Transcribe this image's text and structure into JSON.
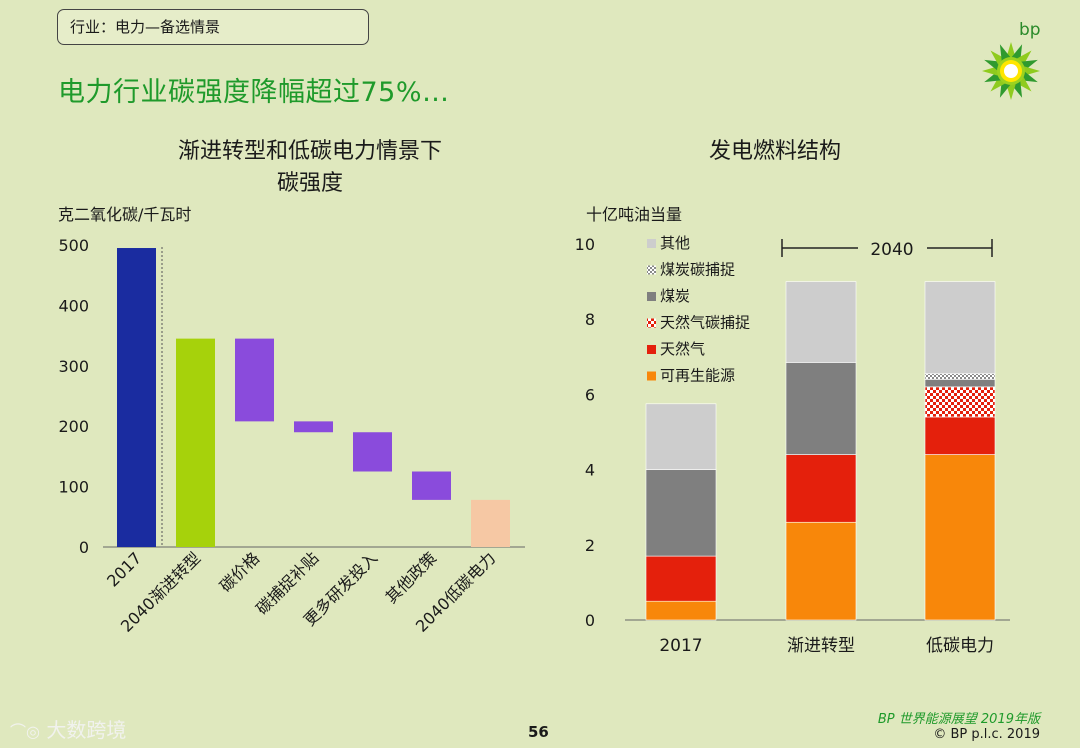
{
  "header": {
    "sector_tag": "行业：电力—备选情景",
    "headline": "电力行业碳强度降幅超过75%…",
    "brand": "bp"
  },
  "colors": {
    "headline": "#1f9a2b",
    "navy": "#1a2ca0",
    "lime": "#a6d20b",
    "purple": "#8a4bdc",
    "peach": "#f6c8a4",
    "orange": "#f8870a",
    "red": "#e4200c",
    "gray": "#7f7f7f",
    "lightgray": "#cdcdcd"
  },
  "chart_data": [
    {
      "type": "waterfall",
      "title_line1": "渐进转型和低碳电力情景下",
      "title_line2": "碳强度",
      "ylabel": "克二氧化碳/千瓦时",
      "ylim": [
        0,
        500
      ],
      "yticks": [
        "0",
        "100",
        "200",
        "300",
        "400",
        "500"
      ],
      "bars": [
        {
          "label": "2017",
          "low": 0,
          "high": 495,
          "color": "#1a2ca0"
        },
        {
          "label": "2040渐进转型",
          "low": 0,
          "high": 345,
          "color": "#a6d20b"
        },
        {
          "label": "碳价格",
          "low": 208,
          "high": 345,
          "color": "#8a4bdc"
        },
        {
          "label": "碳捕捉补贴",
          "low": 190,
          "high": 208,
          "color": "#8a4bdc"
        },
        {
          "label": "更多研发投入",
          "low": 125,
          "high": 190,
          "color": "#8a4bdc"
        },
        {
          "label": "其他政策",
          "low": 78,
          "high": 125,
          "color": "#8a4bdc"
        },
        {
          "label": "2040低碳电力",
          "low": 0,
          "high": 78,
          "color": "#f6c8a4"
        }
      ]
    },
    {
      "type": "stacked_bar",
      "title": "发电燃料结构",
      "ylabel": "十亿吨油当量",
      "ylim": [
        0,
        10
      ],
      "yticks": [
        "0",
        "2",
        "4",
        "6",
        "8",
        "10"
      ],
      "bracket_label": "2040",
      "categories": [
        "2017",
        "渐进转型",
        "低碳电力"
      ],
      "series": [
        {
          "name": "可再生能源",
          "values": [
            0.5,
            2.6,
            4.4
          ],
          "color": "#f8870a",
          "pattern": "none"
        },
        {
          "name": "天然气",
          "values": [
            1.2,
            1.8,
            1.0
          ],
          "color": "#e4200c",
          "pattern": "none"
        },
        {
          "name": "天然气碳捕捉",
          "values": [
            0,
            0,
            0.8
          ],
          "color": "#e4200c",
          "pattern": "check"
        },
        {
          "name": "煤炭",
          "values": [
            2.3,
            2.45,
            0.2
          ],
          "color": "#7f7f7f",
          "pattern": "none"
        },
        {
          "name": "煤炭碳捕捉",
          "values": [
            0,
            0,
            0.15
          ],
          "color": "#9a9a9a",
          "pattern": "check"
        },
        {
          "name": "其他",
          "values": [
            1.75,
            2.15,
            2.45
          ],
          "color": "#cdcdcd",
          "pattern": "none"
        }
      ],
      "legend_order": [
        "其他",
        "煤炭碳捕捉",
        "煤炭",
        "天然气碳捕捉",
        "天然气",
        "可再生能源"
      ]
    }
  ],
  "footer": {
    "source_prefix": "BP",
    "source_rest": " 世界能源展望 2019年版",
    "copyright": "© BP p.l.c. 2019",
    "page_number": "56",
    "watermark": "大数跨境"
  }
}
